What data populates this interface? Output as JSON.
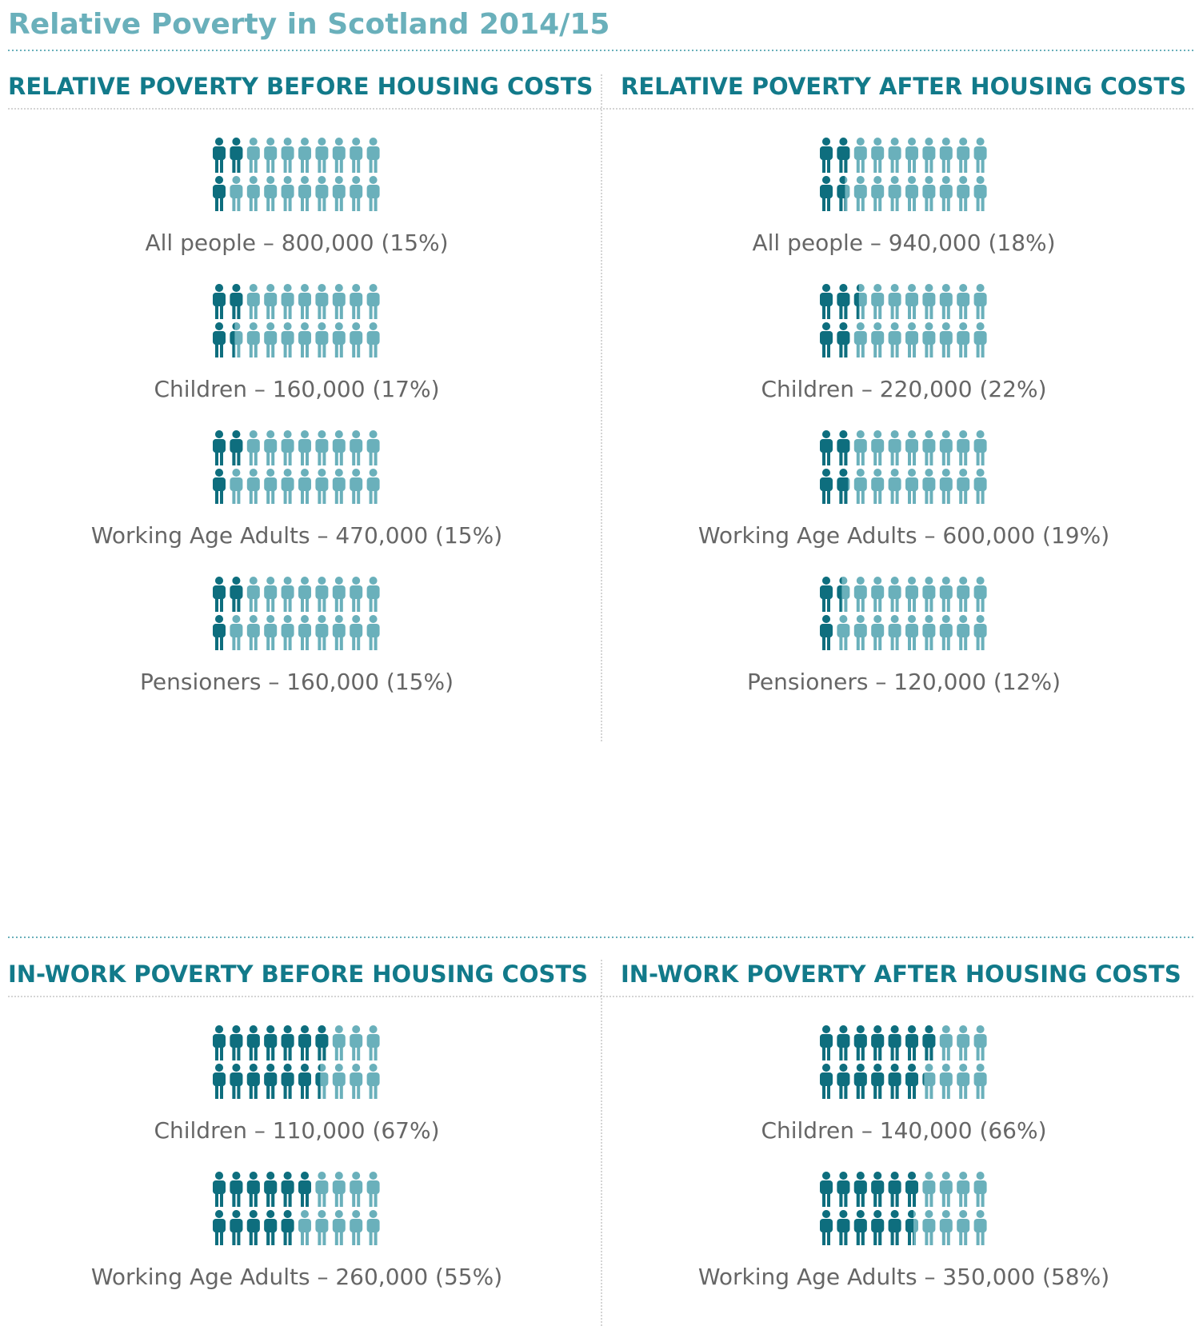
{
  "title": "Relative Poverty in Scotland 2014/15",
  "chart_data": [
    {
      "type": "pictogram",
      "title": "RELATIVE POVERTY BEFORE HOUSING COSTS",
      "categories": [
        "All people – 800,000 (15%)",
        "Children – 160,000 (17%)",
        "Working Age Adults – 470,000 (15%)",
        "Pensioners – 160,000 (15%)"
      ],
      "values": [
        15,
        17,
        15,
        15
      ],
      "colors": [
        "#0e6e7e",
        "#6ab0bb"
      ]
    },
    {
      "type": "pictogram",
      "title": "RELATIVE POVERTY AFTER HOUSING COSTS",
      "categories": [
        "All people – 940,000 (18%)",
        "Children – 220,000 (22%)",
        "Working Age Adults – 600,000 (19%)",
        "Pensioners – 120,000 (12%)"
      ],
      "values": [
        18,
        22,
        19,
        12
      ],
      "colors": [
        "#0e6e7e",
        "#6ab0bb"
      ]
    },
    {
      "type": "pictogram",
      "title": "IN-WORK POVERTY BEFORE HOUSING COSTS",
      "categories": [
        "Children – 110,000 (67%)",
        "Working Age Adults – 260,000 (55%)"
      ],
      "values": [
        67,
        55
      ],
      "colors": [
        "#0e6e7e",
        "#6ab0bb"
      ]
    },
    {
      "type": "pictogram",
      "title": "IN-WORK POVERTY AFTER HOUSING COSTS",
      "categories": [
        "Children – 140,000 (66%)",
        "Working Age Adults – 350,000 (58%)"
      ],
      "values": [
        66,
        58
      ],
      "colors": [
        "#0e6e7e",
        "#6ab0bb"
      ]
    }
  ]
}
